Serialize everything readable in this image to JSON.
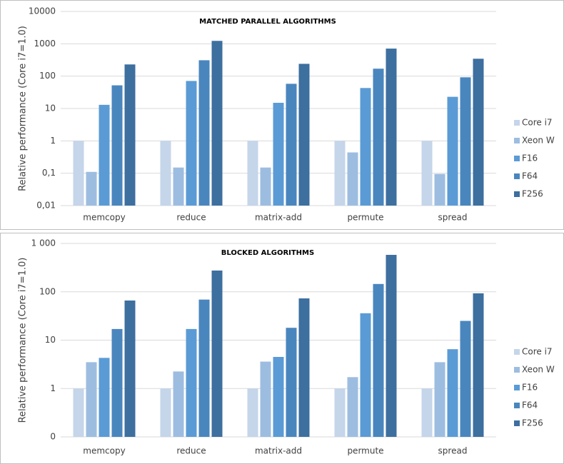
{
  "chart_data": [
    {
      "type": "bar",
      "title": "MATCHED PARALLEL ALGORITHMS",
      "y_label": "Relative performance (Core i7=1.0)",
      "categories": [
        "memcopy",
        "reduce",
        "matrix-add",
        "permute",
        "spread"
      ],
      "series": [
        {
          "name": "Core i7",
          "color": "#c5d5ea",
          "values": [
            1,
            1,
            1,
            1,
            1
          ]
        },
        {
          "name": "Xeon W",
          "color": "#9dbde0",
          "values": [
            0.11,
            0.15,
            0.15,
            0.44,
            0.095
          ]
        },
        {
          "name": "F16",
          "color": "#5b9bd5",
          "values": [
            13,
            71,
            15,
            43,
            23
          ]
        },
        {
          "name": "F64",
          "color": "#4a86be",
          "values": [
            52,
            310,
            58,
            170,
            92
          ]
        },
        {
          "name": "F256",
          "color": "#3d6f9f",
          "values": [
            230,
            1230,
            240,
            710,
            345
          ]
        }
      ],
      "ylim": [
        0.01,
        10000
      ],
      "log_scale": true,
      "grid": true,
      "legend": "right",
      "yticks": [
        {
          "value": 0.01,
          "label": "0,01"
        },
        {
          "value": 0.1,
          "label": "0,1"
        },
        1,
        10,
        100,
        1000,
        10000
      ]
    },
    {
      "type": "bar",
      "title": "BLOCKED ALGORITHMS",
      "y_label": "Relative performance (Core i7=1.0)",
      "categories": [
        "memcopy",
        "reduce",
        "matrix-add",
        "permute",
        "spread"
      ],
      "series": [
        {
          "name": "Core i7",
          "color": "#c5d5ea",
          "values": [
            1,
            1,
            1,
            1,
            1
          ]
        },
        {
          "name": "Xeon W",
          "color": "#9dbde0",
          "values": [
            3.5,
            2.25,
            3.6,
            1.72,
            3.5
          ]
        },
        {
          "name": "F16",
          "color": "#5b9bd5",
          "values": [
            4.3,
            17,
            4.5,
            36,
            6.5
          ]
        },
        {
          "name": "F64",
          "color": "#4a86be",
          "values": [
            17,
            69,
            18,
            145,
            25
          ]
        },
        {
          "name": "F256",
          "color": "#3d6f9f",
          "values": [
            66,
            275,
            73,
            580,
            93
          ]
        }
      ],
      "ylim": [
        0.1,
        1000
      ],
      "log_scale": true,
      "grid": true,
      "legend": "right",
      "yticks": [
        {
          "value": 0.1,
          "label": "0"
        },
        1,
        10,
        100,
        {
          "value": 1000,
          "label": "1 000"
        }
      ]
    }
  ]
}
